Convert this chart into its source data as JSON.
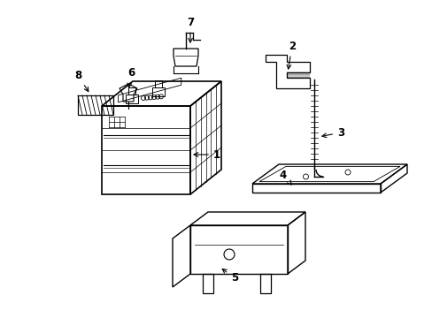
{
  "background_color": "#ffffff",
  "line_color": "#000000",
  "fig_width": 4.89,
  "fig_height": 3.6,
  "dpi": 100,
  "label_fontsize": 8.5,
  "lw": 1.0
}
